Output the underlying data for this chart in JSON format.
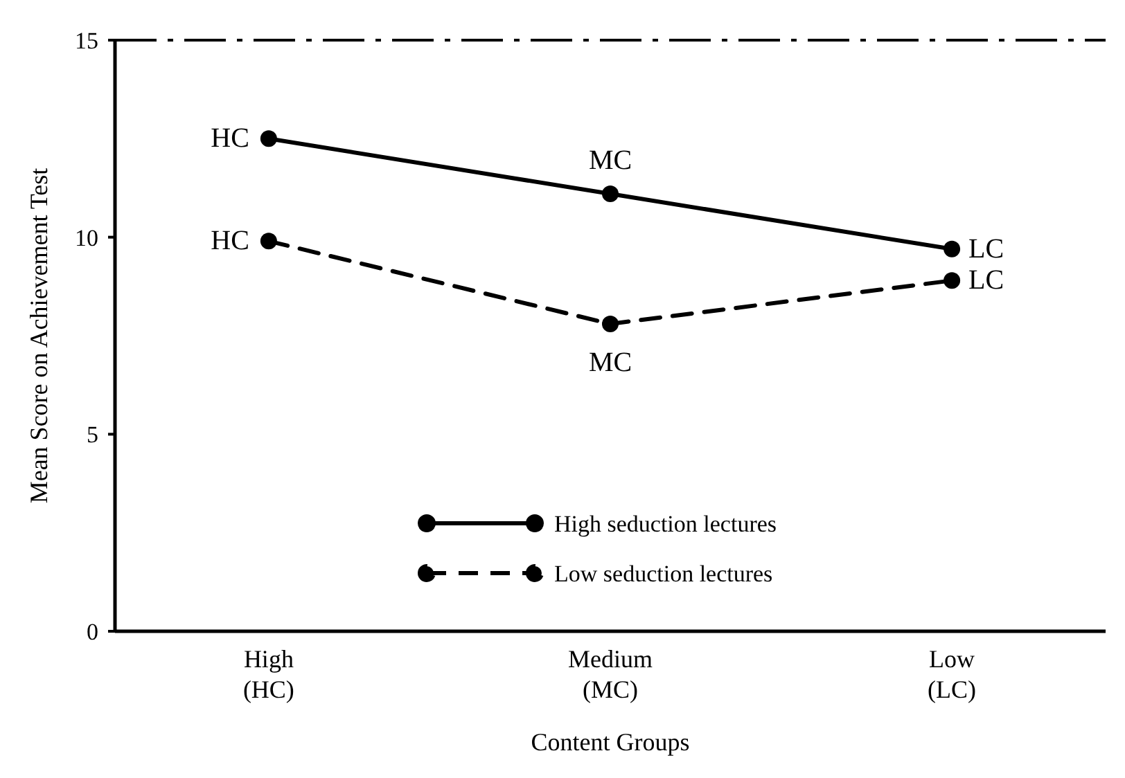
{
  "chart_data": {
    "type": "line",
    "xlabel": "Content Groups",
    "ylabel": "Mean Score on Achievement Test",
    "categories": [
      "High\n(HC)",
      "Medium\n(MC)",
      "Low\n(LC)"
    ],
    "series": [
      {
        "name": "High seduction lectures",
        "color": "#000000",
        "values": [
          12.5,
          11.1,
          9.7
        ],
        "line_style": "solid"
      },
      {
        "name": "Low seduction lectures",
        "color": "#000000",
        "values": [
          9.9,
          7.8,
          8.9
        ],
        "line_style": "dashed"
      }
    ],
    "ylim": [
      0,
      15
    ],
    "yticks": [
      0,
      5,
      10,
      15
    ],
    "marker": "circle",
    "legend": "bottom",
    "grid": false,
    "annotations": [
      {
        "text": "HC",
        "x": "High\n(HC)",
        "y": 12.5
      },
      {
        "text": "MC",
        "x": "Medium\n(MC)",
        "y": 11.1
      },
      {
        "text": "LC",
        "x": "Low\n(LC)",
        "y": 9.7
      },
      {
        "text": "HC",
        "x": "High\n(HC)",
        "y": 9.9
      },
      {
        "text": "MC",
        "x": "Medium\n(MC)",
        "y": 7.8
      },
      {
        "text": "LC",
        "x": "Low\n(LC)",
        "y": 8.9
      }
    ]
  }
}
